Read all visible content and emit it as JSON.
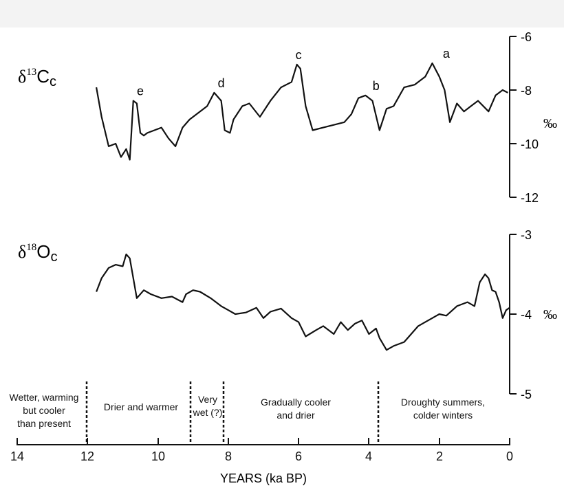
{
  "charts": {
    "c13": {
      "label": {
        "delta": "δ",
        "sup": "13",
        "main": "C",
        "sub": "c"
      },
      "unit": "‰",
      "ticks": [
        "-6",
        "-8",
        "-10",
        "-12"
      ],
      "peaks": [
        "e",
        "d",
        "c",
        "b",
        "a"
      ]
    },
    "o18": {
      "label": {
        "delta": "δ",
        "sup": "18",
        "main": "O",
        "sub": "c"
      },
      "unit": "‰",
      "ticks": [
        "-3",
        "-4",
        "-5"
      ]
    }
  },
  "periods": [
    {
      "lines": [
        "Wetter, warming",
        "but cooler",
        "than present"
      ]
    },
    {
      "lines": [
        "Drier and warmer"
      ]
    },
    {
      "lines": [
        "Very",
        "wet (?)"
      ]
    },
    {
      "lines": [
        "Gradually  cooler",
        "and drier"
      ]
    },
    {
      "lines": [
        "Droughty summers,",
        "colder winters"
      ]
    }
  ],
  "xaxis": {
    "ticks": [
      "14",
      "12",
      "10",
      "8",
      "6",
      "4",
      "2",
      "0"
    ],
    "title": "YEARS (ka BP)"
  },
  "chart_data": [
    {
      "type": "line",
      "title": "",
      "ylabel": "δ13Cc (‰)",
      "xlabel": "YEARS (ka BP)",
      "xlim": [
        14,
        0
      ],
      "ylim": [
        -12,
        -6
      ],
      "x": [
        11.75,
        11.6,
        11.4,
        11.2,
        11.05,
        10.9,
        10.8,
        10.7,
        10.6,
        10.5,
        10.4,
        10.3,
        10.1,
        9.9,
        9.7,
        9.5,
        9.3,
        9.1,
        8.9,
        8.6,
        8.4,
        8.2,
        8.1,
        7.95,
        7.85,
        7.6,
        7.4,
        7.1,
        6.8,
        6.5,
        6.2,
        6.05,
        5.95,
        5.8,
        5.6,
        5.3,
        5.0,
        4.7,
        4.5,
        4.3,
        4.1,
        3.9,
        3.7,
        3.5,
        3.3,
        3.0,
        2.7,
        2.4,
        2.2,
        2.0,
        1.85,
        1.7,
        1.5,
        1.3,
        1.1,
        0.9,
        0.6,
        0.4,
        0.2,
        0.05
      ],
      "y": [
        -7.9,
        -9.0,
        -10.1,
        -10.0,
        -10.5,
        -10.2,
        -10.6,
        -8.4,
        -8.5,
        -9.6,
        -9.7,
        -9.6,
        -9.5,
        -9.4,
        -9.8,
        -10.1,
        -9.4,
        -9.1,
        -8.9,
        -8.6,
        -8.1,
        -8.4,
        -9.5,
        -9.6,
        -9.1,
        -8.6,
        -8.5,
        -9.0,
        -8.4,
        -7.9,
        -7.7,
        -7.05,
        -7.2,
        -8.6,
        -9.5,
        -9.4,
        -9.3,
        -9.2,
        -8.9,
        -8.3,
        -8.2,
        -8.4,
        -9.5,
        -8.7,
        -8.6,
        -7.9,
        -7.8,
        -7.5,
        -7.0,
        -7.5,
        -8.0,
        -9.2,
        -8.5,
        -8.8,
        -8.6,
        -8.4,
        -8.8,
        -8.2,
        -8.0,
        -8.1
      ],
      "annotations": [
        {
          "text": "e",
          "x": 10.5,
          "y": -8.4
        },
        {
          "text": "d",
          "x": 8.2,
          "y": -8.1
        },
        {
          "text": "c",
          "x": 6.0,
          "y": -7.05
        },
        {
          "text": "b",
          "x": 3.8,
          "y": -8.2
        },
        {
          "text": "a",
          "x": 1.8,
          "y": -7.0
        }
      ]
    },
    {
      "type": "line",
      "title": "",
      "ylabel": "δ18Oc (‰)",
      "xlabel": "YEARS (ka BP)",
      "xlim": [
        14,
        0
      ],
      "ylim": [
        -5,
        -3
      ],
      "x": [
        11.75,
        11.6,
        11.4,
        11.2,
        11.0,
        10.9,
        10.8,
        10.7,
        10.6,
        10.4,
        10.2,
        9.9,
        9.6,
        9.3,
        9.2,
        9.0,
        8.8,
        8.5,
        8.2,
        8.0,
        7.8,
        7.5,
        7.2,
        7.0,
        6.8,
        6.5,
        6.2,
        6.0,
        5.8,
        5.5,
        5.3,
        5.0,
        4.8,
        4.6,
        4.4,
        4.2,
        4.0,
        3.8,
        3.7,
        3.5,
        3.3,
        3.0,
        2.8,
        2.6,
        2.4,
        2.2,
        2.0,
        1.8,
        1.5,
        1.2,
        1.0,
        0.85,
        0.7,
        0.6,
        0.5,
        0.4,
        0.3,
        0.2,
        0.1,
        0.0
      ],
      "y": [
        -3.72,
        -3.55,
        -3.42,
        -3.38,
        -3.4,
        -3.25,
        -3.3,
        -3.55,
        -3.8,
        -3.7,
        -3.75,
        -3.8,
        -3.78,
        -3.85,
        -3.75,
        -3.7,
        -3.72,
        -3.8,
        -3.9,
        -3.95,
        -4.0,
        -3.98,
        -3.92,
        -4.05,
        -3.97,
        -3.93,
        -4.05,
        -4.1,
        -4.28,
        -4.2,
        -4.15,
        -4.25,
        -4.1,
        -4.2,
        -4.12,
        -4.08,
        -4.25,
        -4.18,
        -4.3,
        -4.45,
        -4.4,
        -4.35,
        -4.25,
        -4.15,
        -4.1,
        -4.05,
        -4.0,
        -4.02,
        -3.9,
        -3.85,
        -3.9,
        -3.6,
        -3.5,
        -3.55,
        -3.7,
        -3.72,
        -3.85,
        -4.05,
        -3.95,
        -3.92
      ]
    }
  ]
}
